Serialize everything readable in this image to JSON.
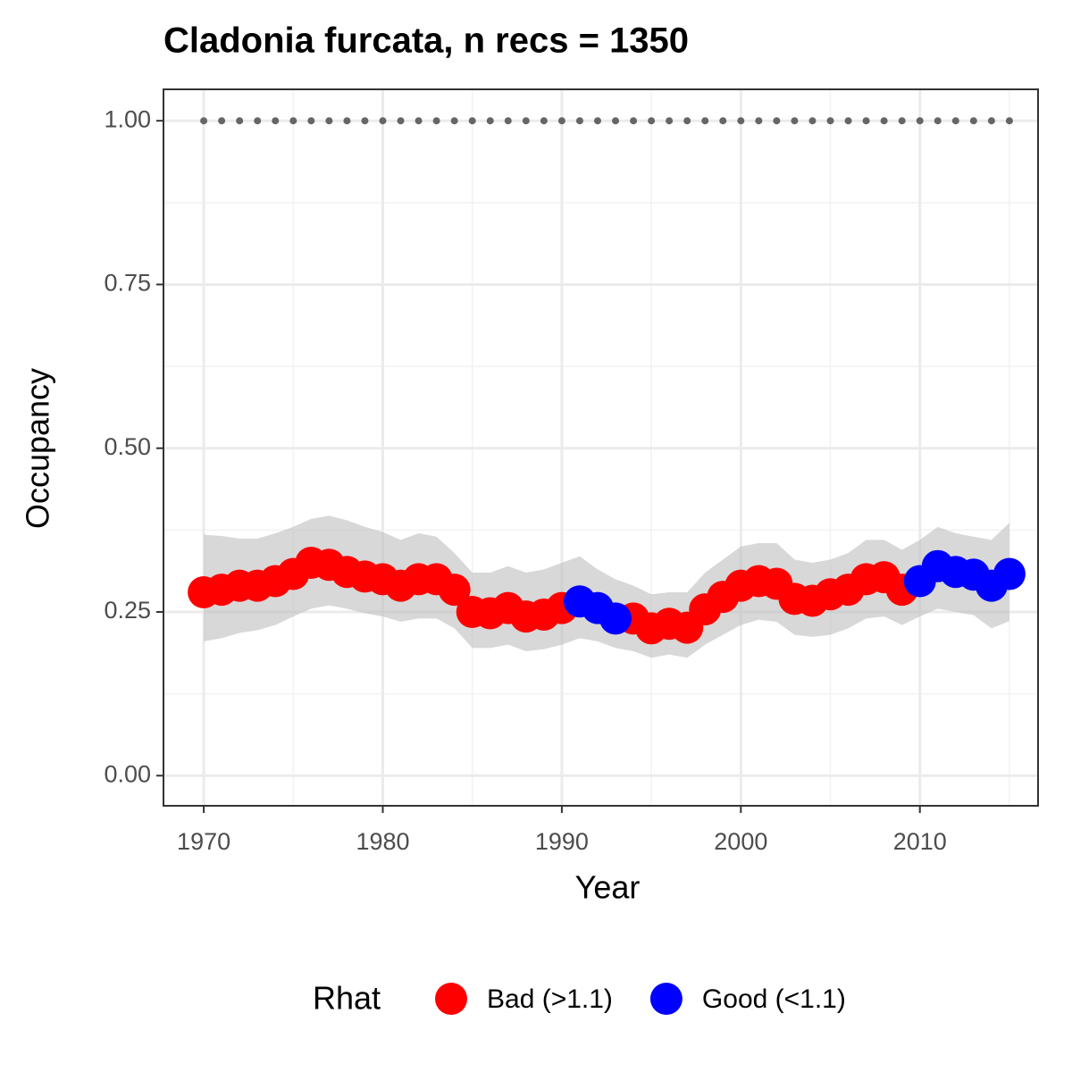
{
  "chart_data": {
    "type": "scatter",
    "title": "Cladonia furcata, n recs = 1350",
    "x_label": "Year",
    "y_label": "Occupancy",
    "legend_title": "Rhat",
    "x": [
      1970,
      1971,
      1972,
      1973,
      1974,
      1975,
      1976,
      1977,
      1978,
      1979,
      1980,
      1981,
      1982,
      1983,
      1984,
      1985,
      1986,
      1987,
      1988,
      1989,
      1990,
      1991,
      1992,
      1993,
      1994,
      1995,
      1996,
      1997,
      1998,
      1999,
      2000,
      2001,
      2002,
      2003,
      2004,
      2005,
      2006,
      2007,
      2008,
      2009,
      2010,
      2011,
      2012,
      2013,
      2014,
      2015
    ],
    "series": [
      {
        "name": "Bad (>1.1)",
        "color": "#ff0000",
        "values": [
          0.28,
          0.284,
          0.29,
          0.29,
          0.297,
          0.308,
          0.325,
          0.322,
          0.311,
          0.304,
          0.3,
          0.29,
          0.3,
          0.3,
          0.284,
          0.25,
          0.248,
          0.256,
          0.243,
          0.246,
          0.256,
          null,
          null,
          null,
          0.24,
          0.225,
          0.232,
          0.226,
          0.254,
          0.273,
          0.29,
          0.297,
          0.293,
          0.27,
          0.267,
          0.277,
          0.284,
          0.3,
          0.303,
          0.284,
          null,
          null,
          null,
          null,
          null,
          null
        ]
      },
      {
        "name": "Good (<1.1)",
        "color": "#0000ff",
        "values": [
          null,
          null,
          null,
          null,
          null,
          null,
          null,
          null,
          null,
          null,
          null,
          null,
          null,
          null,
          null,
          null,
          null,
          null,
          null,
          null,
          null,
          0.266,
          0.256,
          0.24,
          null,
          null,
          null,
          null,
          null,
          null,
          null,
          null,
          null,
          null,
          null,
          null,
          null,
          null,
          null,
          null,
          0.297,
          0.32,
          0.311,
          0.307,
          0.29,
          0.308
        ]
      }
    ],
    "upper": [
      0.368,
      0.366,
      0.362,
      0.362,
      0.37,
      0.38,
      0.392,
      0.397,
      0.39,
      0.38,
      0.372,
      0.36,
      0.37,
      0.365,
      0.34,
      0.31,
      0.31,
      0.32,
      0.31,
      0.315,
      0.325,
      0.335,
      0.315,
      0.3,
      0.29,
      0.277,
      0.28,
      0.28,
      0.31,
      0.33,
      0.35,
      0.355,
      0.355,
      0.33,
      0.325,
      0.33,
      0.34,
      0.36,
      0.36,
      0.345,
      0.36,
      0.38,
      0.37,
      0.365,
      0.36,
      0.386
    ],
    "lower": [
      0.205,
      0.21,
      0.218,
      0.222,
      0.23,
      0.243,
      0.255,
      0.26,
      0.255,
      0.248,
      0.243,
      0.235,
      0.24,
      0.24,
      0.225,
      0.195,
      0.195,
      0.2,
      0.19,
      0.193,
      0.2,
      0.21,
      0.205,
      0.195,
      0.19,
      0.18,
      0.185,
      0.18,
      0.2,
      0.215,
      0.23,
      0.238,
      0.235,
      0.215,
      0.212,
      0.215,
      0.225,
      0.24,
      0.243,
      0.23,
      0.243,
      0.255,
      0.25,
      0.245,
      0.225,
      0.236
    ],
    "band_color": "#bebebe",
    "hline": 1,
    "hline_color": "#666666",
    "xlim": [
      1967.75,
      2016.6
    ],
    "ylim": [
      -0.046,
      1.048
    ],
    "xticks": [
      1970,
      1980,
      1990,
      2000,
      2010
    ],
    "yticks": [
      {
        "value": 0,
        "label": "0.00"
      },
      {
        "value": 0.25,
        "label": "0.25"
      },
      {
        "value": 0.5,
        "label": "0.50"
      },
      {
        "value": 0.75,
        "label": "0.75"
      },
      {
        "value": 1,
        "label": "1.00"
      }
    ],
    "xminor": [
      1975,
      1985,
      1995,
      2005,
      2015
    ],
    "yminor": [
      0.125,
      0.375,
      0.625,
      0.875
    ],
    "grid": true,
    "legend_position": "bottom"
  }
}
